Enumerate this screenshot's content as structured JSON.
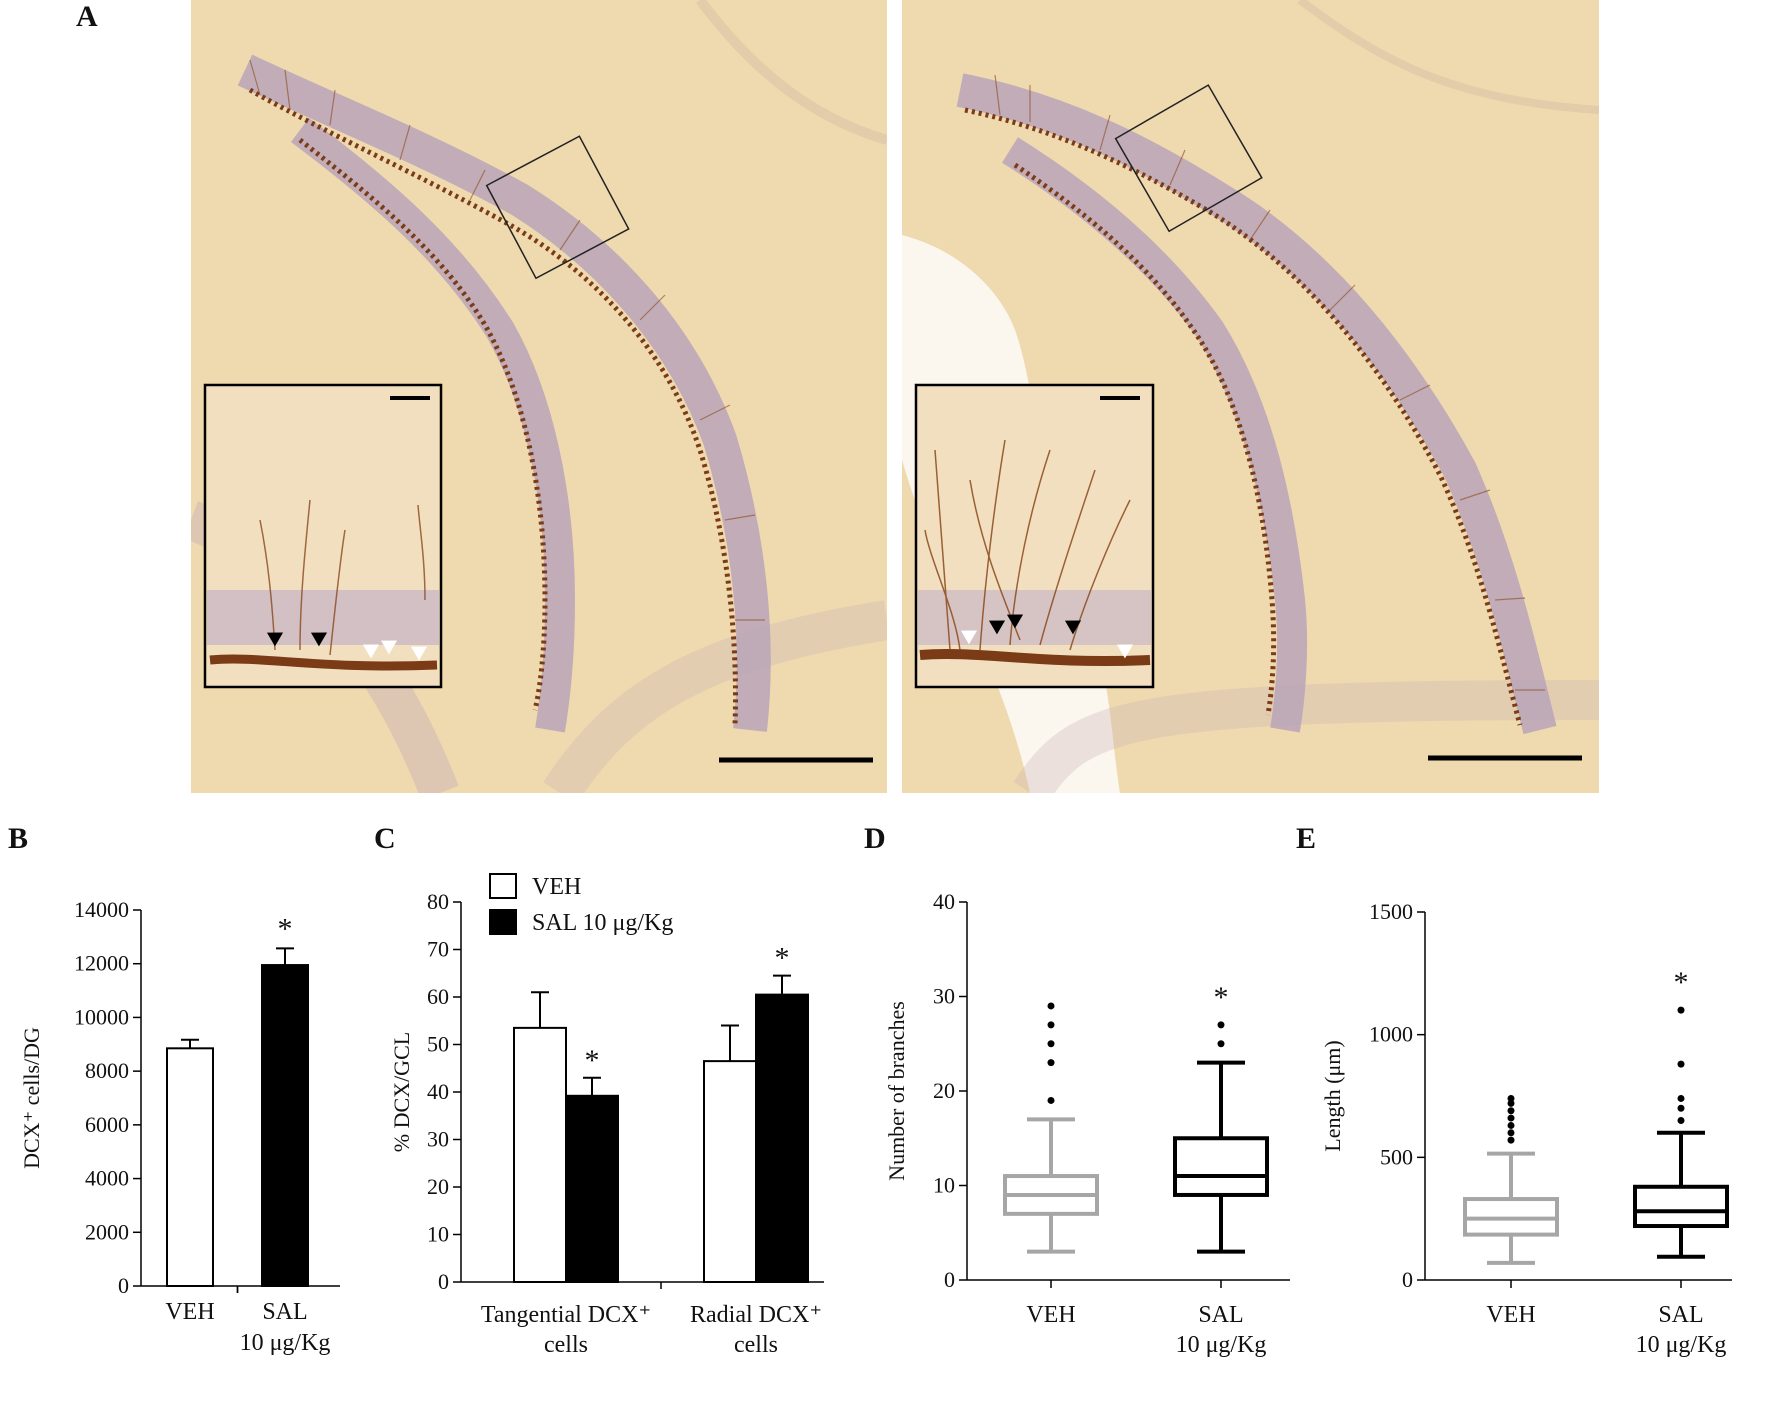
{
  "panels": {
    "a": {
      "label": "A"
    },
    "b": {
      "label": "B"
    },
    "c": {
      "label": "C"
    },
    "d": {
      "label": "D"
    },
    "e": {
      "label": "E"
    }
  },
  "colors": {
    "tissue": "#eed8ab",
    "tissue_dark": "#e4c895",
    "gcl_band": "#b7a4b9",
    "stain": "#7a3b16",
    "veh_box": "#a6a6a6",
    "sal_box": "#000000"
  },
  "chart_data": [
    {
      "id": "B",
      "type": "bar",
      "categories": [
        "VEH",
        "SAL\n10 μg/Kg"
      ],
      "values": [
        8850,
        11950
      ],
      "errors": [
        320,
        620
      ],
      "colors": [
        "#ffffff",
        "#000000"
      ],
      "significance": [
        "",
        "*"
      ],
      "ylabel": "DCX⁺ cells/DG",
      "ylim": [
        0,
        14000
      ],
      "yticks": [
        0,
        2000,
        4000,
        6000,
        8000,
        10000,
        12000,
        14000
      ]
    },
    {
      "id": "C",
      "type": "bar",
      "categories": [
        "Tangential DCX⁺\ncells",
        "Radial DCX⁺\ncells"
      ],
      "series": [
        {
          "name": "VEH",
          "color": "#ffffff",
          "values": [
            53.5,
            46.5
          ],
          "errors": [
            7.5,
            7.5
          ],
          "significance": [
            "",
            ""
          ]
        },
        {
          "name": "SAL 10 μg/Kg",
          "color": "#000000",
          "values": [
            39.2,
            60.5
          ],
          "errors": [
            3.8,
            4.0
          ],
          "significance": [
            "*",
            "*"
          ]
        }
      ],
      "ylabel": "% DCX/GCL",
      "ylim": [
        0,
        80
      ],
      "yticks": [
        0,
        10,
        20,
        30,
        40,
        50,
        60,
        70,
        80
      ],
      "legend": "top-left"
    },
    {
      "id": "D",
      "type": "box",
      "categories": [
        "VEH",
        "SAL\n10 μg/Kg"
      ],
      "boxes": [
        {
          "whisker_low": 3,
          "q1": 7,
          "median": 9,
          "q3": 11,
          "whisker_high": 17,
          "outliers": [
            19,
            23,
            25,
            27,
            29
          ],
          "color": "#a6a6a6",
          "significance": ""
        },
        {
          "whisker_low": 3,
          "q1": 9,
          "median": 11,
          "q3": 15,
          "whisker_high": 23,
          "outliers": [
            25,
            27
          ],
          "color": "#000000",
          "significance": "*"
        }
      ],
      "ylabel": "Number of branches",
      "ylim": [
        0,
        40
      ],
      "yticks": [
        0,
        10,
        20,
        30,
        40
      ]
    },
    {
      "id": "E",
      "type": "box",
      "categories": [
        "VEH",
        "SAL\n10 μg/Kg"
      ],
      "boxes": [
        {
          "whisker_low": 70,
          "q1": 185,
          "median": 250,
          "q3": 330,
          "whisker_high": 515,
          "outliers": [
            570,
            600,
            630,
            660,
            690,
            720,
            740
          ],
          "color": "#a6a6a6",
          "significance": ""
        },
        {
          "whisker_low": 95,
          "q1": 220,
          "median": 280,
          "q3": 380,
          "whisker_high": 600,
          "outliers": [
            650,
            700,
            740,
            880,
            1100
          ],
          "color": "#000000",
          "significance": "*"
        }
      ],
      "ylabel": "Length (μm)",
      "ylim": [
        0,
        1500
      ],
      "yticks": [
        0,
        500,
        1000,
        1500
      ]
    }
  ]
}
